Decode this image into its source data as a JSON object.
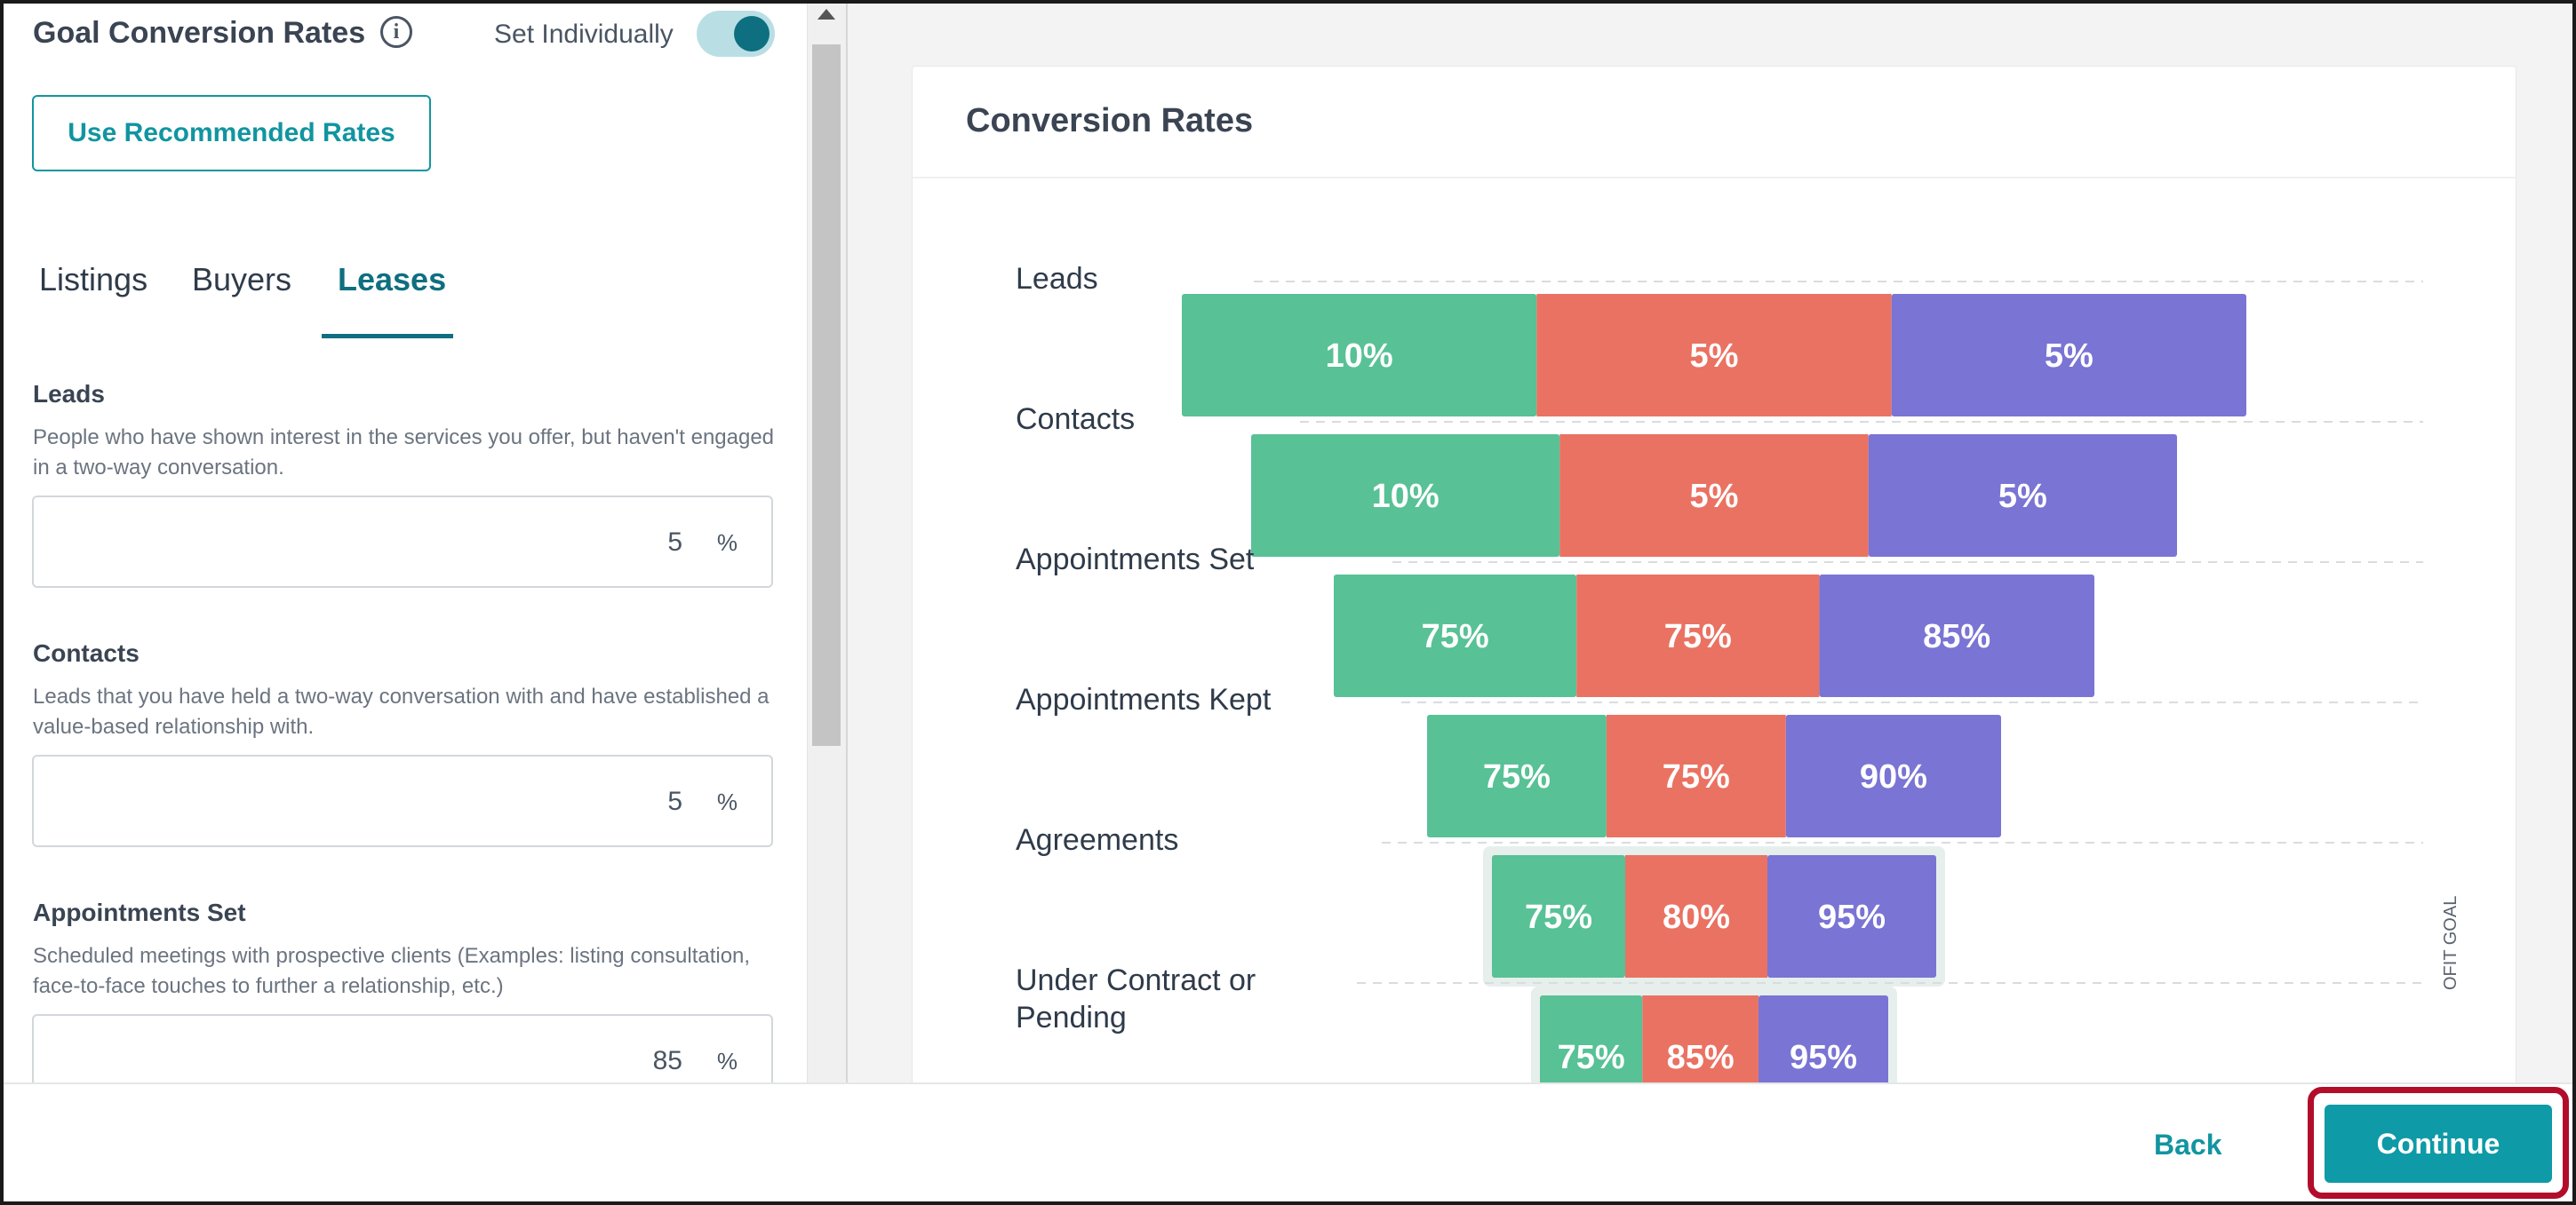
{
  "left_panel": {
    "title": "Goal Conversion Rates",
    "info_icon": "info-icon",
    "toggle_label": "Set Individually",
    "toggle_on": true,
    "recommended_button": "Use Recommended Rates",
    "tabs": [
      {
        "label": "Listings",
        "active": false
      },
      {
        "label": "Buyers",
        "active": false
      },
      {
        "label": "Leases",
        "active": true
      }
    ],
    "fields": [
      {
        "label": "Leads",
        "description": "People who have shown interest in the services you offer, but haven't engaged in a two-way conversation.",
        "value": "5",
        "unit": "%"
      },
      {
        "label": "Contacts",
        "description": "Leads that you have held a two-way conversation with and have established a value-based relationship with.",
        "value": "5",
        "unit": "%"
      },
      {
        "label": "Appointments Set",
        "description": "Scheduled meetings with prospective clients (Examples: listing consultation, face-to-face touches to further a relationship, etc.)",
        "value": "85",
        "unit": "%"
      }
    ]
  },
  "right_panel": {
    "card_title": "Conversion Rates",
    "side_label": "OFIT GOAL"
  },
  "chart_data": {
    "type": "bar",
    "orientation": "horizontal-stacked-funnel",
    "categories": [
      "Leads",
      "Contacts",
      "Appointments Set",
      "Appointments Kept",
      "Agreements",
      "Under Contract or Pending"
    ],
    "series": [
      {
        "color": "#58c196",
        "values": [
          10,
          10,
          75,
          75,
          75,
          75
        ]
      },
      {
        "color": "#ea7262",
        "values": [
          5,
          5,
          75,
          75,
          80,
          85
        ]
      },
      {
        "color": "#7a74d4",
        "values": [
          5,
          5,
          85,
          90,
          95,
          95
        ]
      }
    ],
    "label_suffix": "%",
    "legend": "none",
    "grid": "dashed"
  },
  "footer": {
    "back_label": "Back",
    "continue_label": "Continue"
  }
}
